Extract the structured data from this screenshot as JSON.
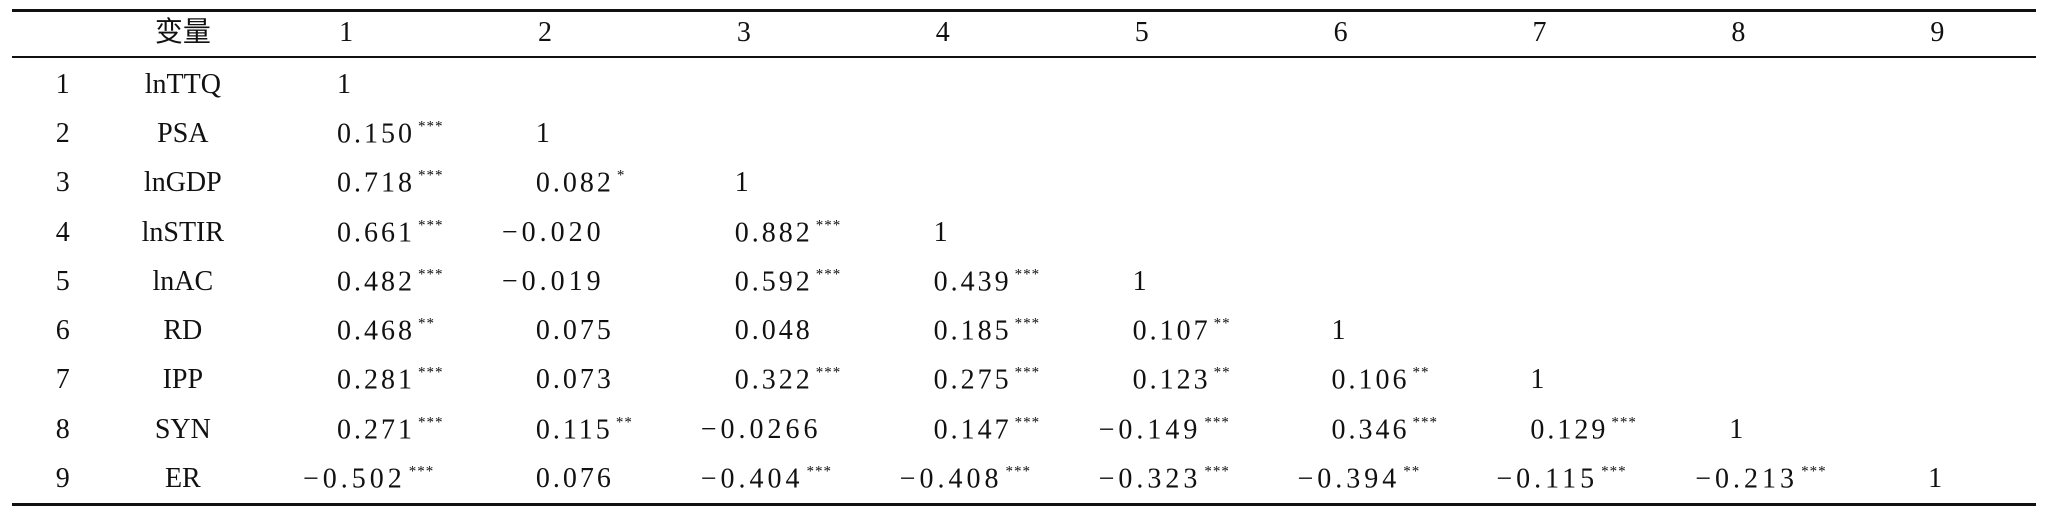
{
  "table": {
    "header": [
      "变量",
      "1",
      "2",
      "3",
      "4",
      "5",
      "6",
      "7",
      "8",
      "9"
    ],
    "rows": [
      {
        "index": "1",
        "variable": "lnTTQ",
        "cells": [
          {
            "value": "1"
          }
        ]
      },
      {
        "index": "2",
        "variable": "PSA",
        "cells": [
          {
            "value": "0.150",
            "sig": "***"
          },
          {
            "value": "1"
          }
        ]
      },
      {
        "index": "3",
        "variable": "lnGDP",
        "cells": [
          {
            "value": "0.718",
            "sig": "***"
          },
          {
            "value": "0.082",
            "sig": "*"
          },
          {
            "value": "1"
          }
        ]
      },
      {
        "index": "4",
        "variable": "lnSTIR",
        "cells": [
          {
            "value": "0.661",
            "sig": "***"
          },
          {
            "value": "−0.020"
          },
          {
            "value": "0.882",
            "sig": "***"
          },
          {
            "value": "1"
          }
        ]
      },
      {
        "index": "5",
        "variable": "lnAC",
        "cells": [
          {
            "value": "0.482",
            "sig": "***"
          },
          {
            "value": "−0.019"
          },
          {
            "value": "0.592",
            "sig": "***"
          },
          {
            "value": "0.439",
            "sig": "***"
          },
          {
            "value": "1"
          }
        ]
      },
      {
        "index": "6",
        "variable": "RD",
        "cells": [
          {
            "value": "0.468",
            "sig": "**"
          },
          {
            "value": "0.075"
          },
          {
            "value": "0.048"
          },
          {
            "value": "0.185",
            "sig": "***"
          },
          {
            "value": "0.107",
            "sig": "**"
          },
          {
            "value": "1"
          }
        ]
      },
      {
        "index": "7",
        "variable": "IPP",
        "cells": [
          {
            "value": "0.281",
            "sig": "***"
          },
          {
            "value": "0.073"
          },
          {
            "value": "0.322",
            "sig": "***"
          },
          {
            "value": "0.275",
            "sig": "***"
          },
          {
            "value": "0.123",
            "sig": "**"
          },
          {
            "value": "0.106",
            "sig": "**"
          },
          {
            "value": "1"
          }
        ]
      },
      {
        "index": "8",
        "variable": "SYN",
        "cells": [
          {
            "value": "0.271",
            "sig": "***"
          },
          {
            "value": "0.115",
            "sig": "**"
          },
          {
            "value": "−0.0266"
          },
          {
            "value": "0.147",
            "sig": "***"
          },
          {
            "value": "−0.149",
            "sig": "***"
          },
          {
            "value": "0.346",
            "sig": "***"
          },
          {
            "value": "0.129",
            "sig": "***"
          },
          {
            "value": "1"
          }
        ]
      },
      {
        "index": "9",
        "variable": "ER",
        "cells": [
          {
            "value": "−0.502",
            "sig": "***"
          },
          {
            "value": "0.076"
          },
          {
            "value": "−0.404",
            "sig": "***"
          },
          {
            "value": "−0.408",
            "sig": "***"
          },
          {
            "value": "−0.323",
            "sig": "***"
          },
          {
            "value": "−0.394",
            "sig": "**"
          },
          {
            "value": "−0.115",
            "sig": "***"
          },
          {
            "value": "−0.213",
            "sig": "***"
          },
          {
            "value": "1"
          }
        ]
      }
    ]
  }
}
